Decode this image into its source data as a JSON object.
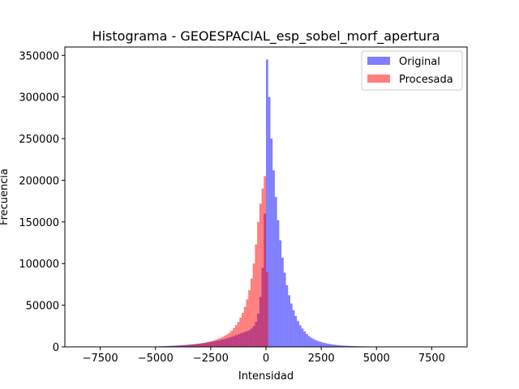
{
  "chart_data": {
    "type": "bar",
    "subtype": "histogram",
    "title": "Histograma - GEOESPACIAL_esp_sobel_morf_apertura",
    "xlabel": "Intensidad",
    "ylabel": "Frecuencia",
    "xlim": [
      -9100,
      9100
    ],
    "ylim": [
      0,
      360000
    ],
    "xticks": [
      -7500,
      -5000,
      -2500,
      0,
      2500,
      5000,
      7500
    ],
    "xtick_labels": [
      "−7500",
      "−5000",
      "−2500",
      "0",
      "2500",
      "5000",
      "7500"
    ],
    "yticks": [
      0,
      50000,
      100000,
      150000,
      200000,
      250000,
      300000,
      350000
    ],
    "ytick_labels": [
      "0",
      "50000",
      "100000",
      "150000",
      "200000",
      "250000",
      "300000",
      "350000"
    ],
    "grid": false,
    "legend_position": "top-right",
    "bin_width": 100,
    "series": [
      {
        "name": "Original",
        "color": "#0000ff",
        "alpha": 0.5,
        "bins": [
          [
            -5100,
            300
          ],
          [
            -5000,
            500
          ],
          [
            -4900,
            700
          ],
          [
            -4800,
            800
          ],
          [
            -4700,
            900
          ],
          [
            -4600,
            1000
          ],
          [
            -4500,
            1100
          ],
          [
            -4400,
            1200
          ],
          [
            -4300,
            1300
          ],
          [
            -4200,
            1500
          ],
          [
            -4100,
            1600
          ],
          [
            -4000,
            1800
          ],
          [
            -3900,
            2000
          ],
          [
            -3800,
            2200
          ],
          [
            -3700,
            2400
          ],
          [
            -3600,
            2600
          ],
          [
            -3500,
            2800
          ],
          [
            -3400,
            3000
          ],
          [
            -3300,
            3200
          ],
          [
            -3200,
            3500
          ],
          [
            -3100,
            3800
          ],
          [
            -3000,
            4100
          ],
          [
            -2900,
            4400
          ],
          [
            -2800,
            4800
          ],
          [
            -2700,
            5200
          ],
          [
            -2600,
            5600
          ],
          [
            -2500,
            6000
          ],
          [
            -2400,
            6500
          ],
          [
            -2300,
            7000
          ],
          [
            -2200,
            7600
          ],
          [
            -2100,
            8200
          ],
          [
            -2000,
            8900
          ],
          [
            -1900,
            9600
          ],
          [
            -1800,
            10400
          ],
          [
            -1700,
            11200
          ],
          [
            -1600,
            12100
          ],
          [
            -1500,
            13000
          ],
          [
            -1400,
            14000
          ],
          [
            -1300,
            15000
          ],
          [
            -1200,
            16000
          ],
          [
            -1100,
            17000
          ],
          [
            -1000,
            18000
          ],
          [
            -900,
            19000
          ],
          [
            -800,
            20000
          ],
          [
            -700,
            22000
          ],
          [
            -600,
            25000
          ],
          [
            -500,
            30000
          ],
          [
            -400,
            40000
          ],
          [
            -300,
            60000
          ],
          [
            -200,
            95000
          ],
          [
            -100,
            160000
          ],
          [
            0,
            345000
          ],
          [
            100,
            300000
          ],
          [
            200,
            250000
          ],
          [
            300,
            212000
          ],
          [
            400,
            180000
          ],
          [
            500,
            152000
          ],
          [
            600,
            128000
          ],
          [
            700,
            107000
          ],
          [
            800,
            89000
          ],
          [
            900,
            74000
          ],
          [
            1000,
            62000
          ],
          [
            1100,
            52000
          ],
          [
            1200,
            44000
          ],
          [
            1300,
            37000
          ],
          [
            1400,
            31000
          ],
          [
            1500,
            26000
          ],
          [
            1600,
            22000
          ],
          [
            1700,
            18500
          ],
          [
            1800,
            15500
          ],
          [
            1900,
            13000
          ],
          [
            2000,
            11000
          ],
          [
            2100,
            9500
          ],
          [
            2200,
            8200
          ],
          [
            2300,
            7100
          ],
          [
            2400,
            6200
          ],
          [
            2500,
            5400
          ],
          [
            2600,
            4700
          ],
          [
            2700,
            4100
          ],
          [
            2800,
            3600
          ],
          [
            2900,
            3100
          ],
          [
            3000,
            2700
          ],
          [
            3100,
            2400
          ],
          [
            3200,
            2100
          ],
          [
            3300,
            1900
          ],
          [
            3400,
            1700
          ],
          [
            3500,
            1500
          ],
          [
            3600,
            1300
          ],
          [
            3700,
            1200
          ],
          [
            3800,
            1100
          ],
          [
            3900,
            1000
          ],
          [
            4000,
            900
          ],
          [
            4100,
            800
          ],
          [
            4200,
            700
          ],
          [
            4300,
            650
          ],
          [
            4400,
            600
          ],
          [
            4500,
            550
          ],
          [
            4600,
            500
          ],
          [
            4700,
            450
          ],
          [
            4800,
            400
          ],
          [
            4900,
            350
          ],
          [
            5000,
            300
          ],
          [
            5100,
            250
          ]
        ]
      },
      {
        "name": "Procesada",
        "color": "#ff0000",
        "alpha": 0.5,
        "bins": [
          [
            -5000,
            200
          ],
          [
            -4900,
            300
          ],
          [
            -4800,
            400
          ],
          [
            -4700,
            500
          ],
          [
            -4600,
            600
          ],
          [
            -4500,
            700
          ],
          [
            -4400,
            800
          ],
          [
            -4300,
            900
          ],
          [
            -4200,
            1000
          ],
          [
            -4100,
            1100
          ],
          [
            -4000,
            1300
          ],
          [
            -3900,
            1500
          ],
          [
            -3800,
            1700
          ],
          [
            -3700,
            1900
          ],
          [
            -3600,
            2100
          ],
          [
            -3500,
            2400
          ],
          [
            -3400,
            2700
          ],
          [
            -3300,
            3000
          ],
          [
            -3200,
            3300
          ],
          [
            -3100,
            3700
          ],
          [
            -3000,
            4100
          ],
          [
            -2900,
            4600
          ],
          [
            -2800,
            5100
          ],
          [
            -2700,
            5700
          ],
          [
            -2600,
            6300
          ],
          [
            -2500,
            7000
          ],
          [
            -2400,
            7800
          ],
          [
            -2300,
            8700
          ],
          [
            -2200,
            9700
          ],
          [
            -2100,
            10800
          ],
          [
            -2000,
            12000
          ],
          [
            -1900,
            13500
          ],
          [
            -1800,
            15000
          ],
          [
            -1700,
            17000
          ],
          [
            -1600,
            19500
          ],
          [
            -1500,
            22500
          ],
          [
            -1400,
            26000
          ],
          [
            -1300,
            30000
          ],
          [
            -1200,
            35000
          ],
          [
            -1100,
            41000
          ],
          [
            -1000,
            48000
          ],
          [
            -900,
            57000
          ],
          [
            -800,
            68000
          ],
          [
            -700,
            82000
          ],
          [
            -600,
            100000
          ],
          [
            -500,
            123000
          ],
          [
            -400,
            150000
          ],
          [
            -300,
            172000
          ],
          [
            -200,
            190000
          ],
          [
            -100,
            205000
          ],
          [
            0,
            90000
          ],
          [
            100,
            500
          ]
        ]
      }
    ]
  }
}
